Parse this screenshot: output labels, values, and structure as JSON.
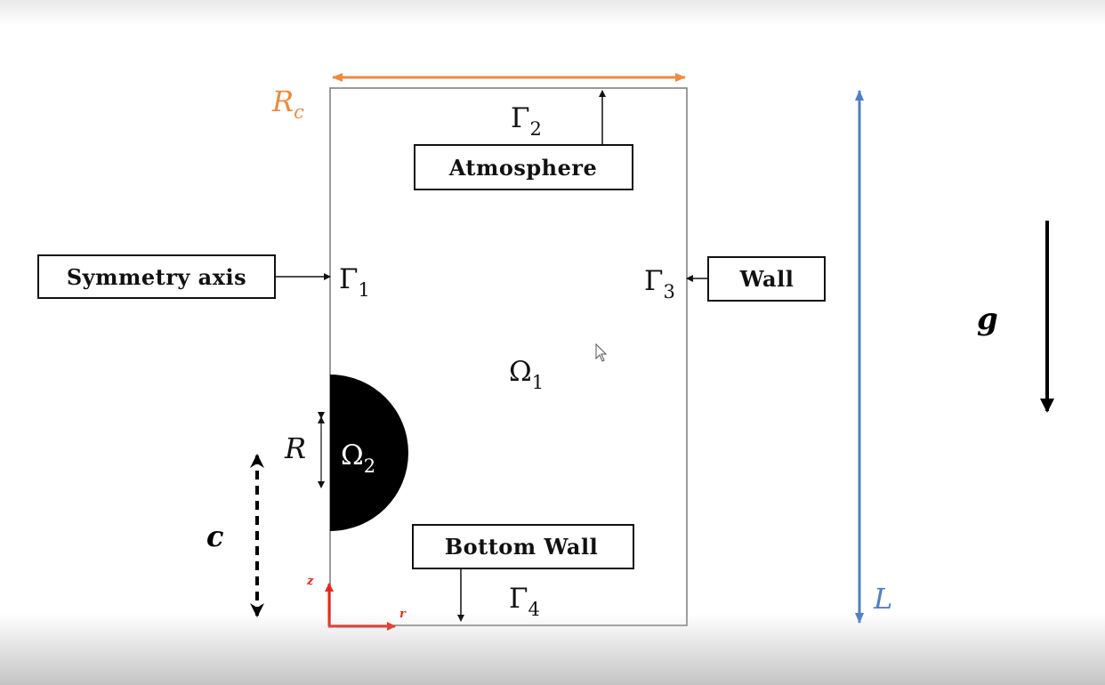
{
  "labels": {
    "atmosphere": "Atmosphere",
    "symmetry_axis": "Symmetry axis",
    "wall": "Wall",
    "bottom_wall": "Bottom Wall"
  },
  "symbols": {
    "gamma_base": "Γ",
    "gamma2_sub": "2",
    "gamma1_sub": "1",
    "gamma3_sub": "3",
    "gamma4_sub": "4",
    "omega_base": "Ω",
    "omega1_sub": "1",
    "omega2_sub": "2",
    "rc_base": "R",
    "rc_sub": "c",
    "R": "R",
    "L": "L",
    "c": "c",
    "g": "g",
    "axis_z": "z",
    "axis_r": "r"
  },
  "colors": {
    "rc_arrow": "#f08a3c",
    "L_arrow": "#4f7fc9",
    "axis_arrows": "#e8281c",
    "bubble": "#000000",
    "domain_border": "#7a7a7a"
  }
}
